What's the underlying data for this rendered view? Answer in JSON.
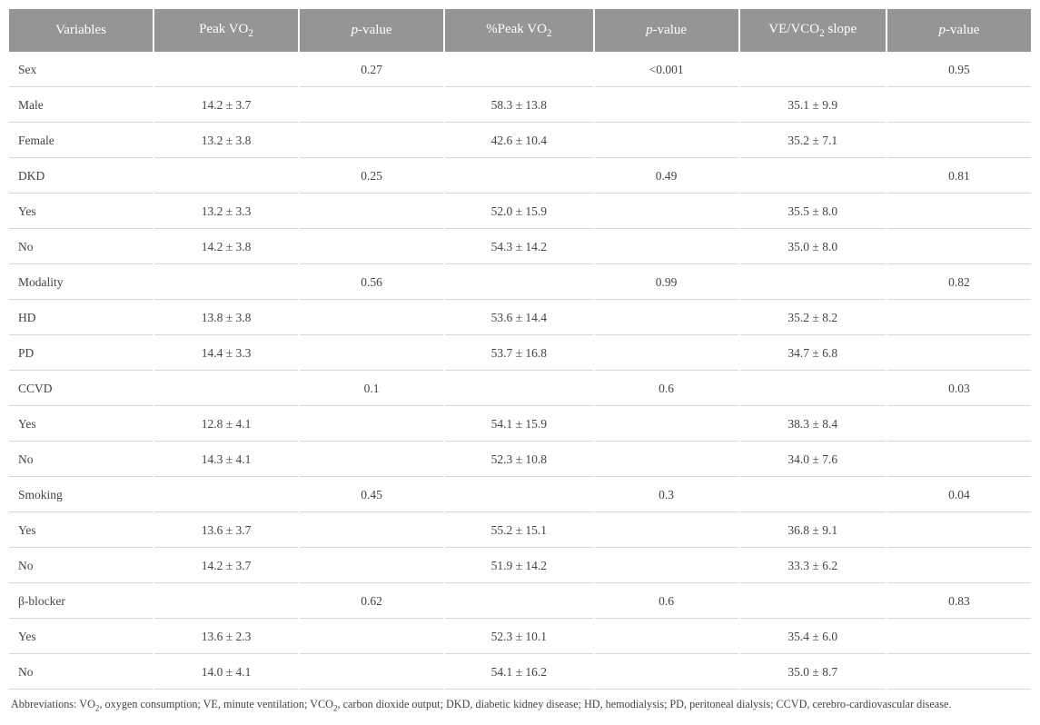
{
  "table": {
    "columns": [
      {
        "key": "var",
        "label": "Variables",
        "type": "text",
        "align": "left"
      },
      {
        "key": "peakvo2",
        "label": "Peak VO",
        "sub": "2",
        "type": "value"
      },
      {
        "key": "p1",
        "label": "p",
        "italic": true,
        "suffix": "-value",
        "type": "pval"
      },
      {
        "key": "pctpeak",
        "label": "%Peak VO",
        "sub": "2",
        "type": "value"
      },
      {
        "key": "p2",
        "label": "p",
        "italic": true,
        "suffix": "-value",
        "type": "pval"
      },
      {
        "key": "vevco2",
        "label": "VE/VCO",
        "sub": "2",
        "suffix_plain": " slope",
        "type": "value"
      },
      {
        "key": "p3",
        "label": "p",
        "italic": true,
        "suffix": "-value",
        "type": "pval"
      }
    ],
    "rows": [
      {
        "var": "Sex",
        "peakvo2": "",
        "p1": "0.27",
        "pctpeak": "",
        "p2": "<0.001",
        "vevco2": "",
        "p3": "0.95"
      },
      {
        "var": "Male",
        "peakvo2": "14.2 ± 3.7",
        "p1": "",
        "pctpeak": "58.3 ± 13.8",
        "p2": "",
        "vevco2": "35.1 ± 9.9",
        "p3": ""
      },
      {
        "var": "Female",
        "peakvo2": "13.2 ± 3.8",
        "p1": "",
        "pctpeak": "42.6 ± 10.4",
        "p2": "",
        "vevco2": "35.2 ± 7.1",
        "p3": ""
      },
      {
        "var": "DKD",
        "peakvo2": "",
        "p1": "0.25",
        "pctpeak": "",
        "p2": "0.49",
        "vevco2": "",
        "p3": "0.81"
      },
      {
        "var": "Yes",
        "peakvo2": "13.2 ± 3.3",
        "p1": "",
        "pctpeak": "52.0 ± 15.9",
        "p2": "",
        "vevco2": "35.5 ± 8.0",
        "p3": ""
      },
      {
        "var": "No",
        "peakvo2": "14.2 ± 3.8",
        "p1": "",
        "pctpeak": "54.3 ± 14.2",
        "p2": "",
        "vevco2": "35.0 ± 8.0",
        "p3": ""
      },
      {
        "var": "Modality",
        "peakvo2": "",
        "p1": "0.56",
        "pctpeak": "",
        "p2": "0.99",
        "vevco2": "",
        "p3": "0.82"
      },
      {
        "var": "HD",
        "peakvo2": "13.8 ± 3.8",
        "p1": "",
        "pctpeak": "53.6 ± 14.4",
        "p2": "",
        "vevco2": "35.2 ± 8.2",
        "p3": ""
      },
      {
        "var": "PD",
        "peakvo2": "14.4 ± 3.3",
        "p1": "",
        "pctpeak": "53.7 ± 16.8",
        "p2": "",
        "vevco2": "34.7 ± 6.8",
        "p3": ""
      },
      {
        "var": "CCVD",
        "peakvo2": "",
        "p1": "0.1",
        "pctpeak": "",
        "p2": "0.6",
        "vevco2": "",
        "p3": "0.03"
      },
      {
        "var": "Yes",
        "peakvo2": "12.8 ± 4.1",
        "p1": "",
        "pctpeak": "54.1 ± 15.9",
        "p2": "",
        "vevco2": "38.3 ± 8.4",
        "p3": ""
      },
      {
        "var": "No",
        "peakvo2": "14.3 ± 4.1",
        "p1": "",
        "pctpeak": "52.3 ± 10.8",
        "p2": "",
        "vevco2": "34.0 ± 7.6",
        "p3": ""
      },
      {
        "var": "Smoking",
        "peakvo2": "",
        "p1": "0.45",
        "pctpeak": "",
        "p2": "0.3",
        "vevco2": "",
        "p3": "0.04"
      },
      {
        "var": "Yes",
        "peakvo2": "13.6 ± 3.7",
        "p1": "",
        "pctpeak": "55.2 ± 15.1",
        "p2": "",
        "vevco2": "36.8 ± 9.1",
        "p3": ""
      },
      {
        "var": "No",
        "peakvo2": "14.2 ± 3.7",
        "p1": "",
        "pctpeak": "51.9 ± 14.2",
        "p2": "",
        "vevco2": "33.3 ± 6.2",
        "p3": ""
      },
      {
        "var": "β-blocker",
        "peakvo2": "",
        "p1": "0.62",
        "pctpeak": "",
        "p2": "0.6",
        "vevco2": "",
        "p3": "0.83"
      },
      {
        "var": "Yes",
        "peakvo2": "13.6 ± 2.3",
        "p1": "",
        "pctpeak": "52.3 ± 10.1",
        "p2": "",
        "vevco2": "35.4 ± 6.0",
        "p3": ""
      },
      {
        "var": "No",
        "peakvo2": "14.0 ± 4.1",
        "p1": "",
        "pctpeak": "54.1 ± 16.2",
        "p2": "",
        "vevco2": "35.0 ± 8.7",
        "p3": ""
      }
    ],
    "header_bg": "#959595",
    "header_fg": "#ffffff",
    "row_border": "#d8d8d8",
    "body_fontsize": 13.5,
    "header_fontsize": 15
  },
  "footnote": {
    "prefix": "Abbreviations: VO",
    "sub1": "2",
    "mid1": ", oxygen consumption; VE, minute ventilation; VCO",
    "sub2": "2",
    "mid2": ", carbon dioxide output; DKD, diabetic kidney disease; HD, hemodialysis; PD, peritoneal dialysis; CCVD, cerebro-cardiovascular disease."
  }
}
